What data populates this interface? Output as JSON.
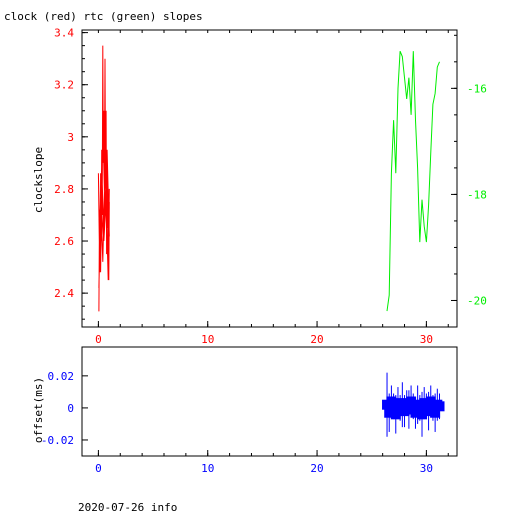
{
  "title": "clock (red) rtc (green) slopes",
  "footer": "2020-07-26 info",
  "colors": {
    "clock": "#ff0000",
    "rtc": "#00ee00",
    "offset": "#0000ff",
    "axis": "#000000"
  },
  "chart_data": [
    {
      "type": "line",
      "title": "clock (red) rtc (green) slopes",
      "xlabel": "",
      "ylabel": "clockslope",
      "y2label": "",
      "xlim": [
        -1.5,
        32.8
      ],
      "ylim": [
        2.27,
        3.41
      ],
      "y2lim": [
        -20.5,
        -14.9
      ],
      "xticks": [
        0,
        10,
        20,
        30
      ],
      "xtick_labels": [
        "0",
        "10",
        "20",
        "30"
      ],
      "yticks": [
        2.4,
        2.6,
        2.8,
        3.0,
        3.2,
        3.4
      ],
      "ytick_labels": [
        "2.4",
        "2.6",
        "2.8",
        "3",
        "3.2",
        "3.4"
      ],
      "y2ticks": [
        -20,
        -18,
        -16
      ],
      "y2tick_labels": [
        "-20",
        "-18",
        "-16"
      ],
      "grid": false,
      "series": [
        {
          "name": "clock",
          "axis": "left",
          "x": [
            0.05,
            0.1,
            0.15,
            0.2,
            0.25,
            0.3,
            0.35,
            0.4,
            0.45,
            0.5,
            0.55,
            0.6,
            0.65,
            0.7,
            0.75,
            0.8,
            0.85,
            0.9,
            0.95,
            1.0,
            0.9,
            0.7,
            0.5,
            0.3,
            0.1,
            0.0,
            0.2,
            0.4,
            0.6,
            0.8,
            1.0,
            0.8,
            0.6,
            0.4,
            0.2,
            0.05,
            0.3,
            0.5,
            0.7,
            0.9,
            1.0
          ],
          "y": [
            2.33,
            2.72,
            2.48,
            2.86,
            2.6,
            2.95,
            2.7,
            3.35,
            2.9,
            3.1,
            2.78,
            3.3,
            2.85,
            3.1,
            2.55,
            2.92,
            2.65,
            2.8,
            2.45,
            2.75,
            2.5,
            2.86,
            2.6,
            2.7,
            2.54,
            2.86,
            2.48,
            3.05,
            2.7,
            2.95,
            2.62,
            2.58,
            2.88,
            2.52,
            2.78,
            2.42,
            2.9,
            2.6,
            2.76,
            2.45,
            2.8
          ]
        },
        {
          "name": "rtc",
          "axis": "right",
          "x": [
            26.4,
            26.6,
            26.8,
            27.0,
            27.2,
            27.4,
            27.6,
            27.8,
            28.0,
            28.2,
            28.4,
            28.6,
            28.8,
            29.0,
            29.2,
            29.4,
            29.6,
            29.8,
            30.0,
            30.2,
            30.4,
            30.6,
            30.8,
            31.0,
            31.2
          ],
          "y": [
            -20.2,
            -19.9,
            -17.6,
            -16.6,
            -17.6,
            -16.0,
            -15.3,
            -15.4,
            -15.8,
            -16.2,
            -15.8,
            -16.5,
            -15.3,
            -16.6,
            -17.5,
            -18.9,
            -18.1,
            -18.6,
            -18.9,
            -18.2,
            -17.2,
            -16.3,
            -16.1,
            -15.6,
            -15.5
          ]
        }
      ]
    },
    {
      "type": "scatter",
      "xlabel": "",
      "ylabel": "offset(ms)",
      "xlim": [
        -1.5,
        32.8
      ],
      "ylim": [
        -0.03,
        0.038
      ],
      "xticks": [
        0,
        10,
        20,
        30
      ],
      "xtick_labels": [
        "0",
        "10",
        "20",
        "30"
      ],
      "yticks": [
        -0.02,
        0,
        0.02
      ],
      "ytick_labels": [
        "-0.02",
        "0",
        "0.02"
      ],
      "grid": false,
      "series": [
        {
          "name": "offset",
          "x": [
            26.4,
            26.6,
            26.8,
            27.0,
            27.2,
            27.4,
            27.6,
            27.8,
            28.0,
            28.2,
            28.4,
            28.6,
            28.8,
            29.0,
            29.2,
            29.4,
            29.6,
            29.8,
            30.0,
            30.2,
            30.4,
            30.6,
            30.8,
            31.0,
            31.2
          ],
          "y": [
            0.002,
            -0.003,
            0.004,
            0.001,
            -0.004,
            0.003,
            0.0,
            0.002,
            -0.002,
            0.003,
            -0.001,
            0.004,
            0.001,
            -0.003,
            0.002,
            0.0,
            -0.004,
            0.003,
            0.001,
            -0.002,
            0.004,
            0.0,
            -0.003,
            0.002,
            0.001
          ],
          "spread": [
            0.02,
            0.012,
            0.01,
            0.008,
            0.012,
            0.01,
            0.008,
            0.014,
            0.01,
            0.008,
            0.012,
            0.01,
            0.008,
            0.01,
            0.012,
            0.008,
            0.014,
            0.01,
            0.008,
            0.012,
            0.01,
            0.008,
            0.012,
            0.01,
            0.008
          ]
        }
      ]
    }
  ]
}
